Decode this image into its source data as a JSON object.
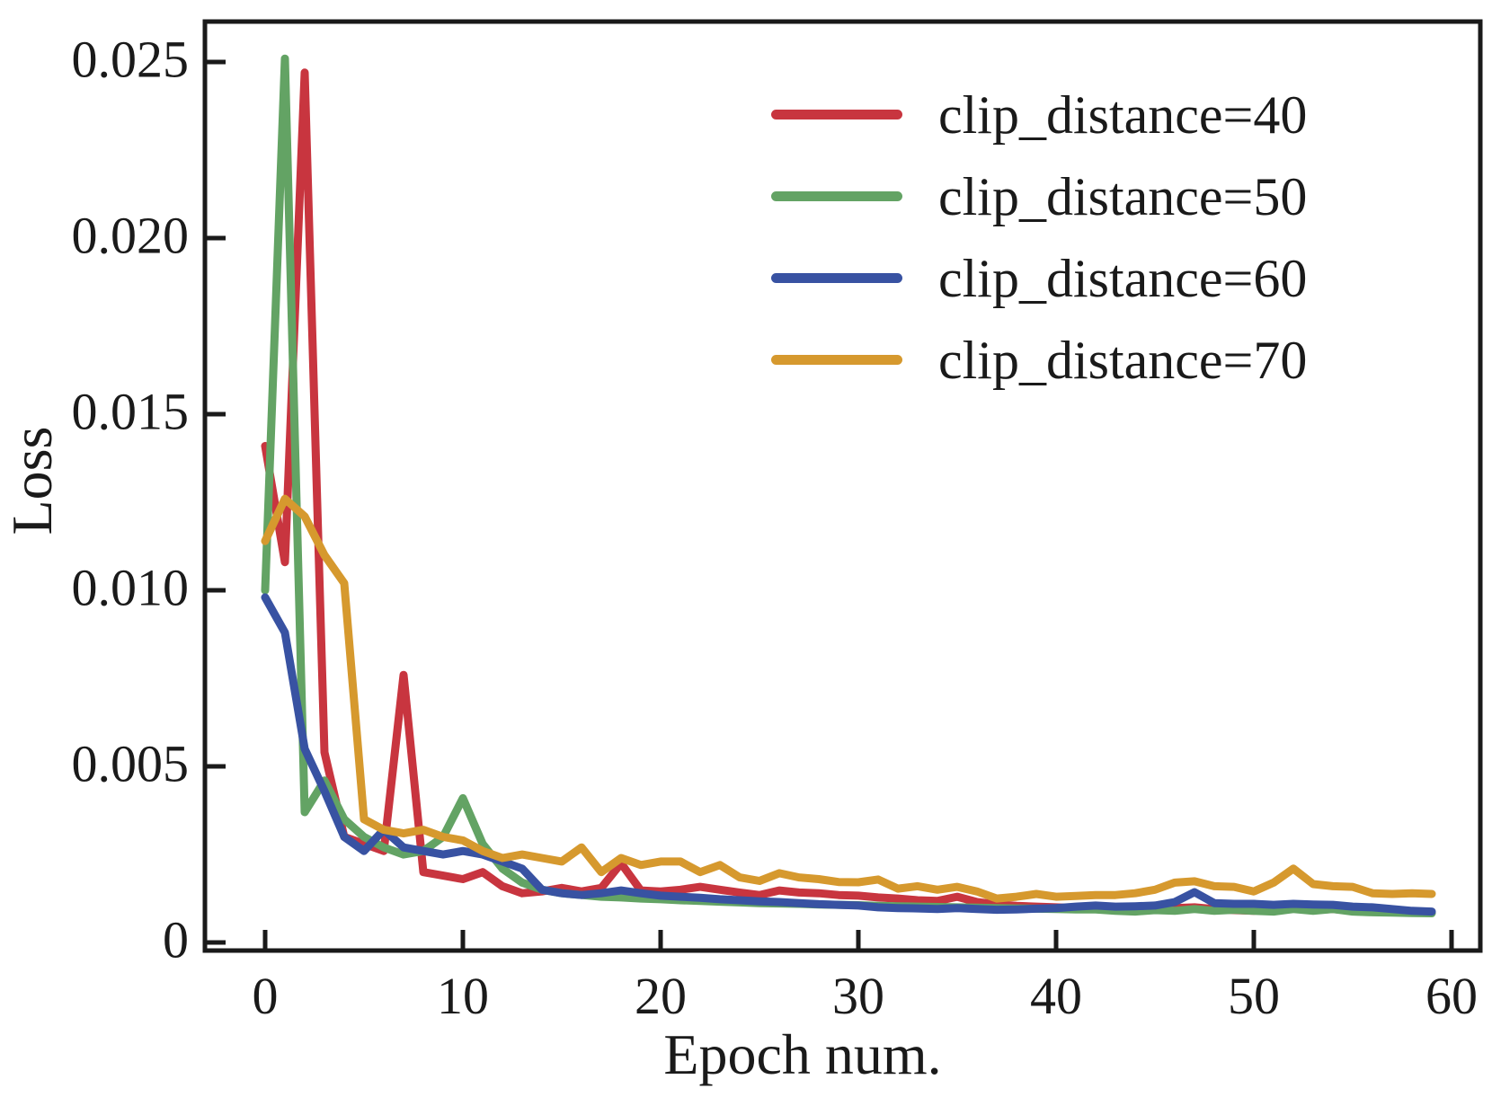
{
  "figure": {
    "background": "#ffffff",
    "axis_color": "#1a1a1a"
  },
  "axes": {
    "x": {
      "label": "Epoch num.",
      "ticks": [
        "0",
        "10",
        "20",
        "30",
        "40",
        "50",
        "60"
      ],
      "range": [
        -3,
        61.5
      ]
    },
    "y": {
      "label": "Loss",
      "ticks": [
        "0",
        "0.005",
        "0.010",
        "0.015",
        "0.020",
        "0.025"
      ],
      "range": [
        0,
        0.0262
      ]
    }
  },
  "legend": {
    "position": "upper right",
    "items": [
      {
        "label": "clip_distance=40",
        "color": "#c8353f"
      },
      {
        "label": "clip_distance=50",
        "color": "#63a364"
      },
      {
        "label": "clip_distance=60",
        "color": "#3852a2"
      },
      {
        "label": "clip_distance=70",
        "color": "#d6992e"
      }
    ]
  },
  "chart_data": {
    "type": "line",
    "title": "",
    "xlabel": "Epoch num.",
    "ylabel": "Loss",
    "x_start": 0,
    "x_step": 1,
    "xlim": [
      -3,
      61.5
    ],
    "ylim": [
      0,
      0.0262
    ],
    "grid": false,
    "legend_position": "upper right",
    "series": [
      {
        "name": "clip_distance=40",
        "color": "#c8353f",
        "values": [
          0.0142,
          0.0109,
          0.0248,
          0.0055,
          0.0031,
          0.0029,
          0.0027,
          0.0077,
          0.0021,
          0.002,
          0.0019,
          0.0021,
          0.0017,
          0.0015,
          0.00155,
          0.00165,
          0.00155,
          0.00165,
          0.00235,
          0.00158,
          0.00155,
          0.0016,
          0.00168,
          0.0016,
          0.00152,
          0.00145,
          0.00158,
          0.00152,
          0.0015,
          0.00145,
          0.00143,
          0.00138,
          0.00135,
          0.0013,
          0.00128,
          0.0014,
          0.00125,
          0.00118,
          0.00114,
          0.00112,
          0.0011,
          0.00108,
          0.00112,
          0.00107,
          0.00105,
          0.00112,
          0.00108,
          0.0011,
          0.00105,
          0.00102,
          0.001,
          0.00105,
          0.0011,
          0.00102,
          0.00105,
          0.001,
          0.00098,
          0.00097,
          0.00096,
          0.00095
        ]
      },
      {
        "name": "clip_distance=50",
        "color": "#63a364",
        "values": [
          0.0101,
          0.0252,
          0.0038,
          0.0047,
          0.0036,
          0.0031,
          0.0028,
          0.0026,
          0.0027,
          0.0031,
          0.0042,
          0.0029,
          0.0022,
          0.0018,
          0.0016,
          0.0015,
          0.00145,
          0.0014,
          0.00138,
          0.00135,
          0.00133,
          0.0013,
          0.00128,
          0.00126,
          0.00124,
          0.00122,
          0.00121,
          0.0012,
          0.00118,
          0.00117,
          0.00116,
          0.00114,
          0.00113,
          0.00112,
          0.00111,
          0.0011,
          0.00109,
          0.00108,
          0.00107,
          0.00106,
          0.00105,
          0.00104,
          0.00104,
          0.001,
          0.00098,
          0.00102,
          0.001,
          0.00105,
          0.001,
          0.00103,
          0.001,
          0.00098,
          0.00105,
          0.001,
          0.00105,
          0.00098,
          0.00096,
          0.00095,
          0.00094,
          0.00093
        ]
      },
      {
        "name": "clip_distance=60",
        "color": "#3852a2",
        "values": [
          0.0099,
          0.0089,
          0.0056,
          0.0044,
          0.0031,
          0.0027,
          0.0033,
          0.0028,
          0.0027,
          0.0026,
          0.0027,
          0.0026,
          0.0024,
          0.0022,
          0.0016,
          0.0015,
          0.00145,
          0.0015,
          0.00158,
          0.0015,
          0.00143,
          0.0014,
          0.00137,
          0.00133,
          0.0013,
          0.00127,
          0.00125,
          0.00122,
          0.00119,
          0.00117,
          0.00115,
          0.0011,
          0.00108,
          0.00107,
          0.00105,
          0.00108,
          0.00105,
          0.00103,
          0.00104,
          0.00106,
          0.00108,
          0.00112,
          0.00115,
          0.00112,
          0.00113,
          0.00115,
          0.00125,
          0.00153,
          0.00122,
          0.0012,
          0.0012,
          0.00117,
          0.0012,
          0.00118,
          0.00117,
          0.00112,
          0.0011,
          0.00105,
          0.001,
          0.00098
        ]
      },
      {
        "name": "clip_distance=70",
        "color": "#d6992e",
        "values": [
          0.0115,
          0.0127,
          0.0122,
          0.0111,
          0.0103,
          0.0036,
          0.0033,
          0.0032,
          0.0033,
          0.0031,
          0.003,
          0.0027,
          0.0025,
          0.0026,
          0.0025,
          0.0024,
          0.0028,
          0.0021,
          0.0025,
          0.0023,
          0.0024,
          0.0024,
          0.0021,
          0.0023,
          0.00195,
          0.00185,
          0.00207,
          0.00195,
          0.0019,
          0.00182,
          0.00181,
          0.00189,
          0.00163,
          0.0017,
          0.0016,
          0.00168,
          0.00155,
          0.00135,
          0.0014,
          0.00148,
          0.0014,
          0.00142,
          0.00145,
          0.00145,
          0.0015,
          0.0016,
          0.0018,
          0.00184,
          0.0017,
          0.00168,
          0.00155,
          0.0018,
          0.0022,
          0.00176,
          0.0017,
          0.00168,
          0.0015,
          0.00148,
          0.0015,
          0.00148
        ]
      }
    ]
  }
}
